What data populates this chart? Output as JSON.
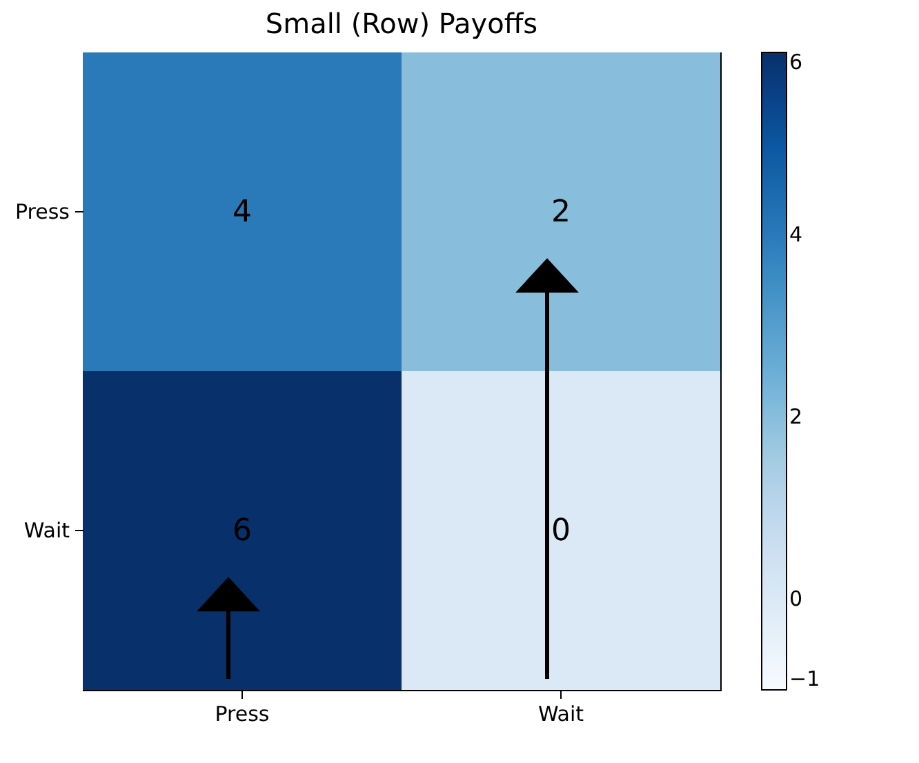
{
  "chart_data": {
    "type": "heatmap",
    "title": "Small (Row) Payoffs",
    "categories": [
      "Press",
      "Wait"
    ],
    "y_categories": [
      "Press",
      "Wait"
    ],
    "cells": [
      [
        4,
        2
      ],
      [
        6,
        0
      ]
    ],
    "data_labels": true,
    "clim": [
      -1,
      6
    ],
    "cticks": [
      {
        "value": -1,
        "label": "−1"
      },
      0,
      2,
      4,
      6
    ]
  }
}
